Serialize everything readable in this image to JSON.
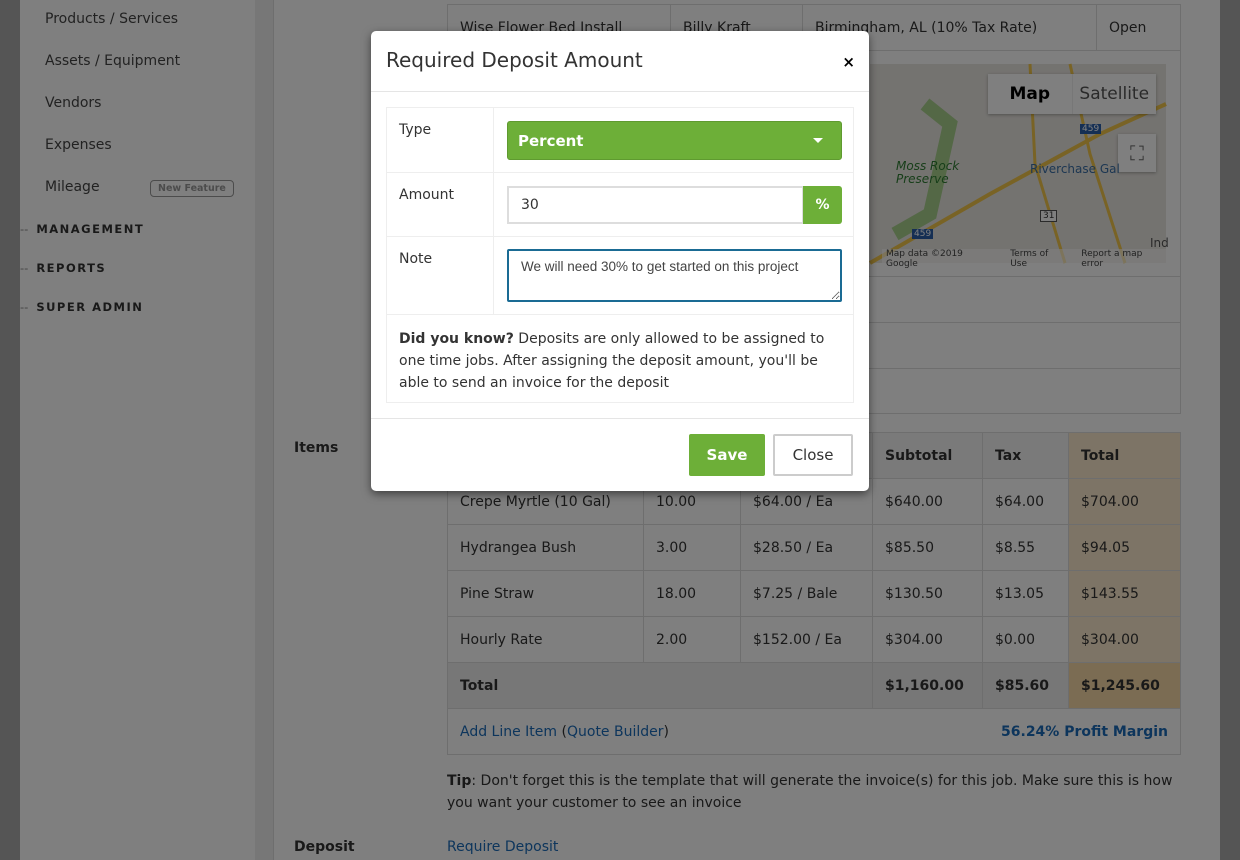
{
  "sidebar": {
    "items": [
      {
        "label": "Products / Services"
      },
      {
        "label": "Assets / Equipment"
      },
      {
        "label": "Vendors"
      },
      {
        "label": "Expenses"
      },
      {
        "label": "Mileage",
        "badge": "New Feature"
      }
    ],
    "sections": [
      {
        "label": "MANAGEMENT"
      },
      {
        "label": "REPORTS"
      },
      {
        "label": "SUPER ADMIN"
      }
    ],
    "dash": "--"
  },
  "job_row": {
    "name": "Wise Flower Bed Install",
    "customer": "Billy Kraft",
    "location": "Birmingham, AL (10% Tax Rate)",
    "action": "Open"
  },
  "map": {
    "map_tab": "Map",
    "satellite_tab": "Satellite",
    "labels": [
      "Moss Rock Preserve",
      "Riverchase Gal",
      "459",
      "31",
      "Ind"
    ],
    "footer": [
      "Map data ©2019 Google",
      "Terms of Use",
      "Report a map error"
    ]
  },
  "items_section": {
    "label": "Items",
    "headers": [
      "Subtotal",
      "Tax",
      "Total"
    ],
    "rows": [
      {
        "name": "Crepe Myrtle (10 Gal)",
        "qty": "10.00",
        "rate": "$64.00 / Ea",
        "subtotal": "$640.00",
        "tax": "$64.00",
        "total": "$704.00"
      },
      {
        "name": "Hydrangea Bush",
        "qty": "3.00",
        "rate": "$28.50 / Ea",
        "subtotal": "$85.50",
        "tax": "$8.55",
        "total": "$94.05"
      },
      {
        "name": "Pine Straw",
        "qty": "18.00",
        "rate": "$7.25 / Bale",
        "subtotal": "$130.50",
        "tax": "$13.05",
        "total": "$143.55"
      },
      {
        "name": "Hourly Rate",
        "qty": "2.00",
        "rate": "$152.00 / Ea",
        "subtotal": "$304.00",
        "tax": "$0.00",
        "total": "$304.00"
      }
    ],
    "totals": {
      "label": "Total",
      "subtotal": "$1,160.00",
      "tax": "$85.60",
      "total": "$1,245.60"
    },
    "add_line": "Add Line Item",
    "quote_builder": "Quote Builder",
    "profit_margin": "56.24% Profit Margin",
    "tip_label": "Tip",
    "tip_text": ": Don't forget this is the template that will generate the invoice(s) for this job. Make sure this is how you want your customer to see an invoice"
  },
  "deposit": {
    "label": "Deposit",
    "link": "Require Deposit"
  },
  "modal": {
    "title": "Required Deposit Amount",
    "close_x": "×",
    "type_label": "Type",
    "type_value": "Percent",
    "amount_label": "Amount",
    "amount_value": "30",
    "amount_unit": "%",
    "note_label": "Note",
    "note_value": "We will need 30% to get started on this project",
    "did_you_know_label": "Did you know?",
    "did_you_know_text": " Deposits are only allowed to be assigned to one time jobs. After assigning the deposit amount, you'll be able to send an invoice for the deposit",
    "save": "Save",
    "close": "Close"
  },
  "colors": {
    "accent_green": "#6daf38",
    "link_blue": "#1a6bb8",
    "total_column": "#fbe9cc",
    "focus_border": "#1a6b94"
  }
}
